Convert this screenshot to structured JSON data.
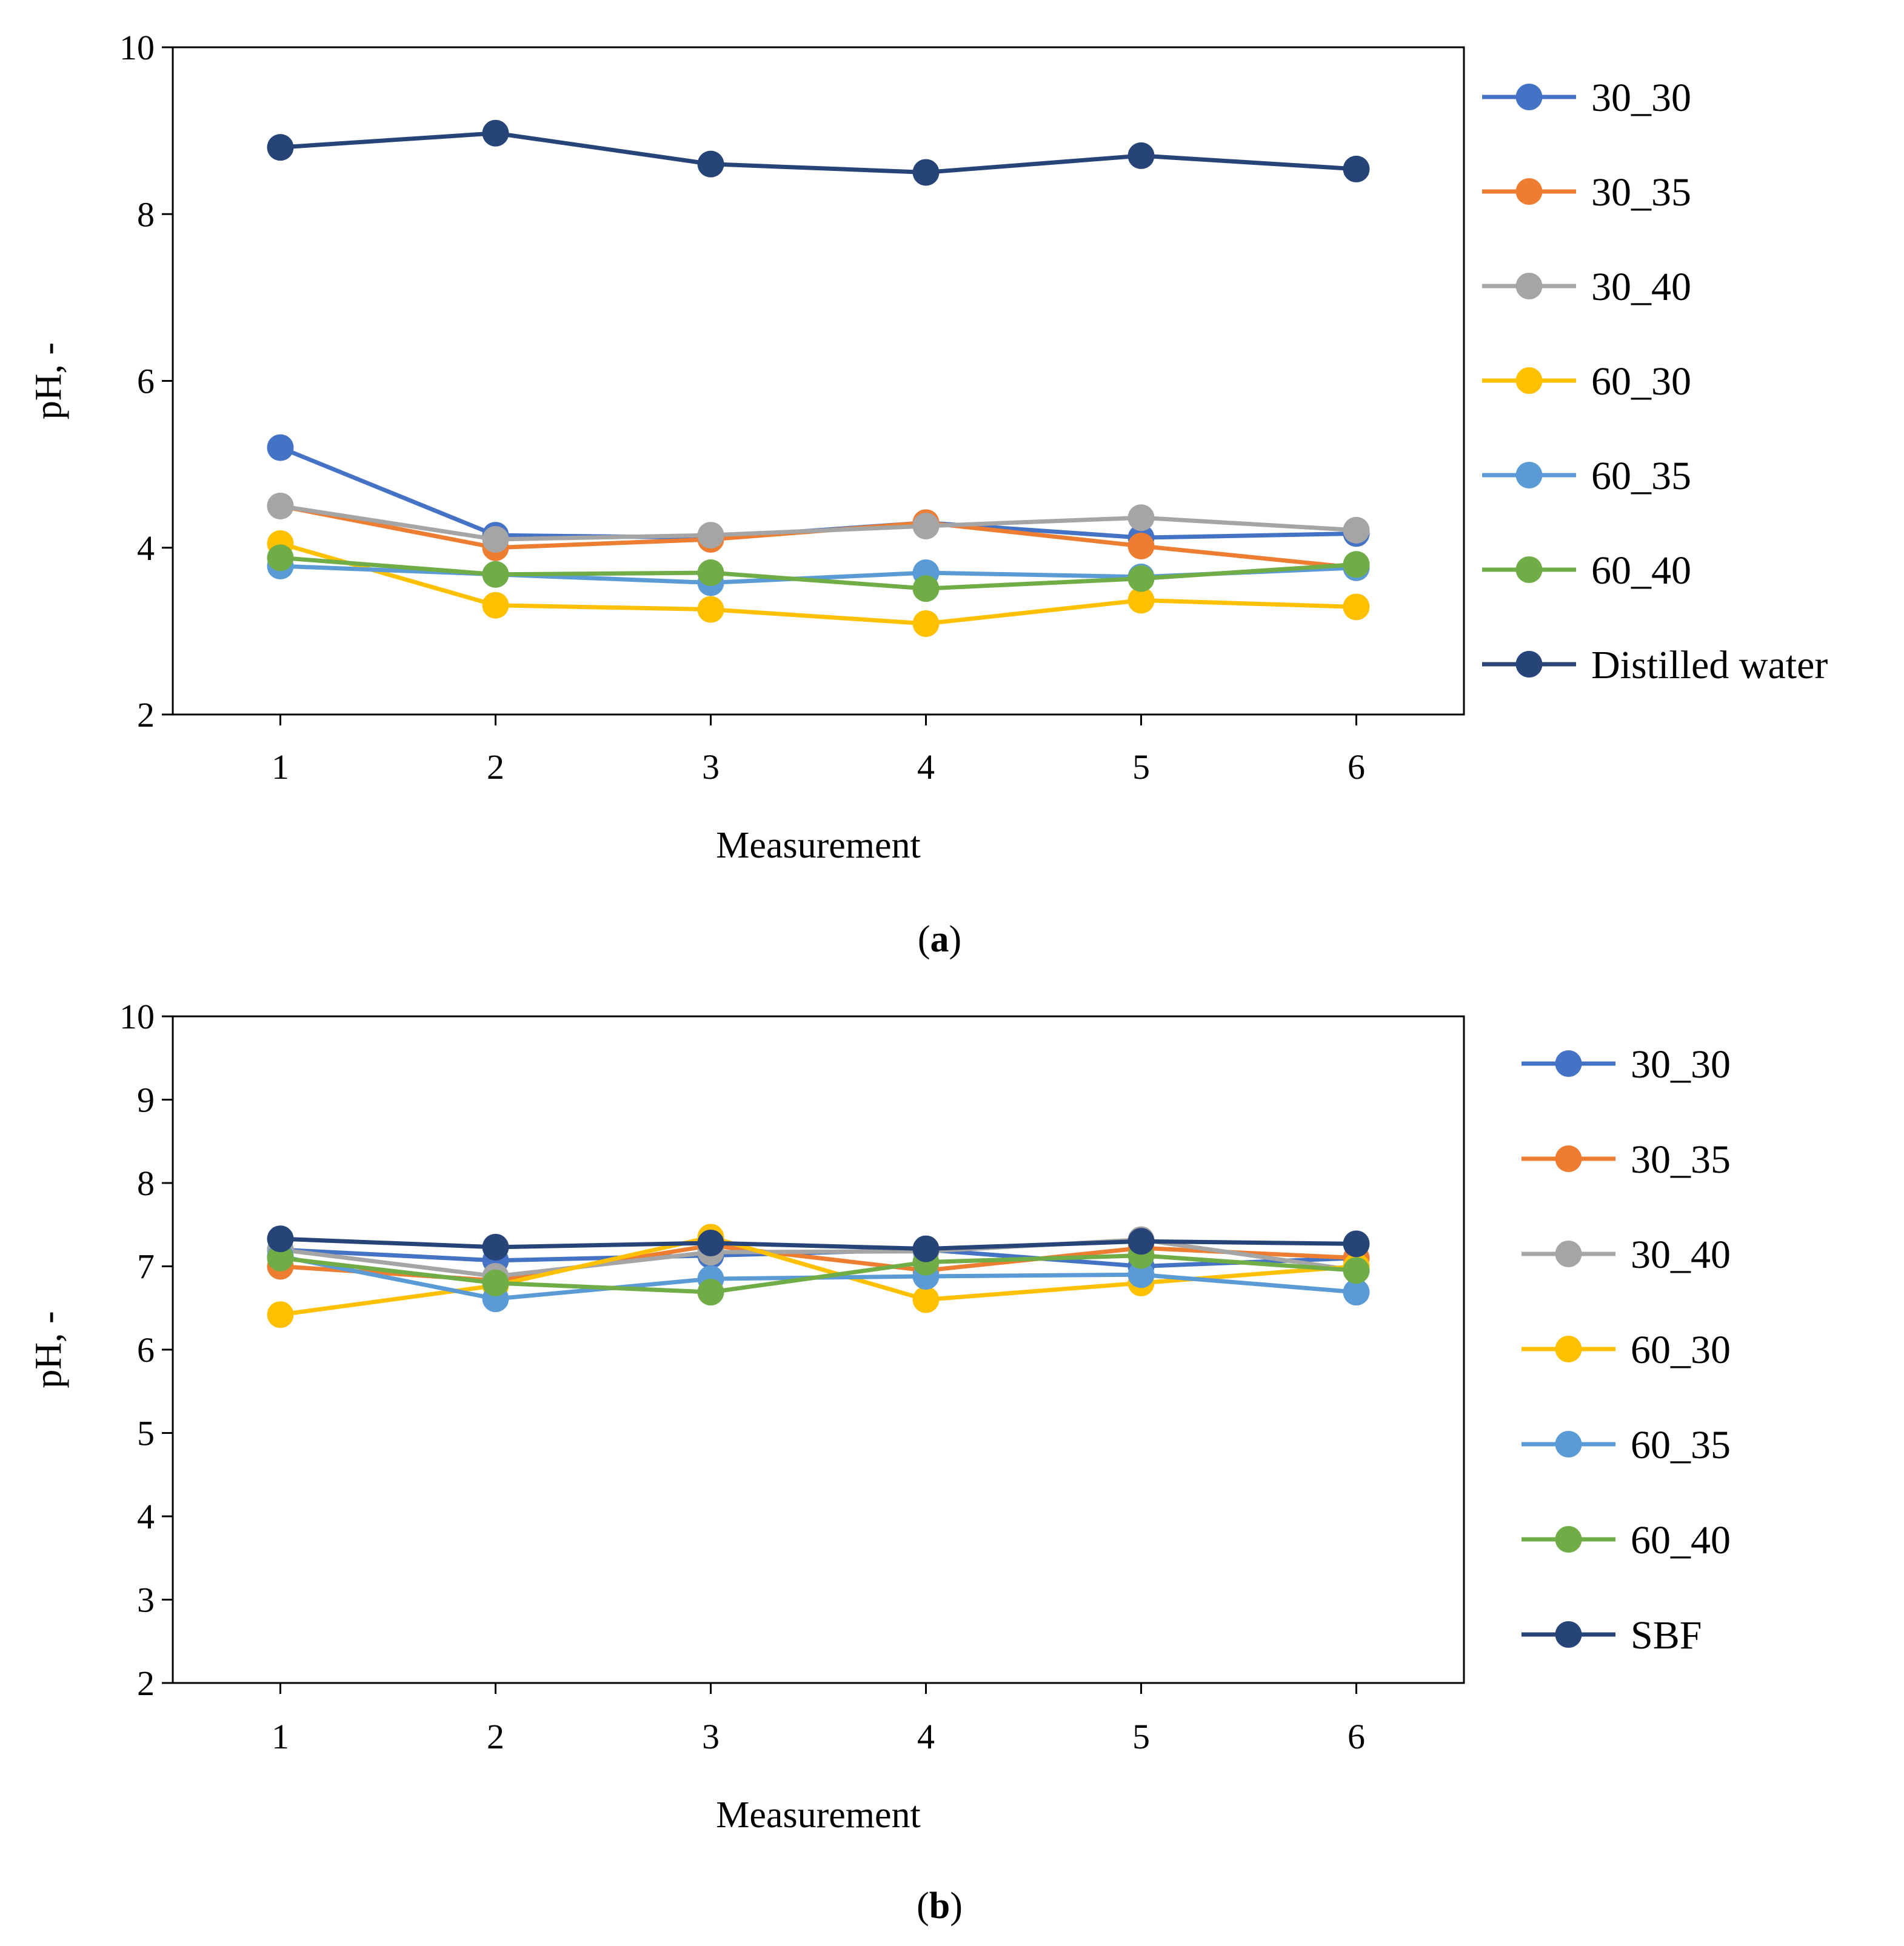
{
  "chart_data": [
    {
      "type": "line",
      "panel_label": "a",
      "caption_open": "(",
      "caption_close": ")",
      "categories": [
        "1",
        "2",
        "3",
        "4",
        "5",
        "6"
      ],
      "xlabel": "Measurement",
      "ylabel": "pH, -",
      "ylim": [
        2,
        10
      ],
      "yticks": [
        "2",
        "4",
        "6",
        "8",
        "10"
      ],
      "grid": false,
      "legend_position": "right",
      "series": [
        {
          "name": "30_30",
          "color": "#4472C4",
          "values": [
            5.2,
            4.15,
            4.12,
            4.3,
            4.12,
            4.17
          ]
        },
        {
          "name": "30_35",
          "color": "#ED7D31",
          "values": [
            4.5,
            4.0,
            4.1,
            4.3,
            4.02,
            3.76
          ]
        },
        {
          "name": "30_40",
          "color": "#A5A5A5",
          "values": [
            4.5,
            4.1,
            4.15,
            4.26,
            4.36,
            4.21
          ]
        },
        {
          "name": "60_30",
          "color": "#FFC000",
          "values": [
            4.05,
            3.31,
            3.26,
            3.09,
            3.37,
            3.29
          ]
        },
        {
          "name": "60_35",
          "color": "#5B9BD5",
          "values": [
            3.78,
            3.68,
            3.58,
            3.7,
            3.65,
            3.76
          ]
        },
        {
          "name": "60_40",
          "color": "#70AD47",
          "values": [
            3.88,
            3.68,
            3.7,
            3.51,
            3.63,
            3.8
          ]
        },
        {
          "name": "Distilled water",
          "color": "#264478",
          "values": [
            8.8,
            8.97,
            8.6,
            8.5,
            8.7,
            8.54
          ]
        }
      ]
    },
    {
      "type": "line",
      "panel_label": "b",
      "caption_open": "(",
      "caption_close": ")",
      "categories": [
        "1",
        "2",
        "3",
        "4",
        "5",
        "6"
      ],
      "xlabel": "Measurement",
      "ylabel": "pH, -",
      "ylim": [
        2,
        10
      ],
      "yticks": [
        "2",
        "3",
        "4",
        "5",
        "6",
        "7",
        "8",
        "9",
        "10"
      ],
      "grid": false,
      "legend_position": "right",
      "series": [
        {
          "name": "30_30",
          "color": "#4472C4",
          "values": [
            7.2,
            7.07,
            7.13,
            7.2,
            7.0,
            7.1
          ]
        },
        {
          "name": "30_35",
          "color": "#ED7D31",
          "values": [
            7.0,
            6.83,
            7.25,
            6.95,
            7.22,
            7.1
          ]
        },
        {
          "name": "30_40",
          "color": "#A5A5A5",
          "values": [
            7.2,
            6.88,
            7.17,
            7.18,
            7.32,
            6.95
          ]
        },
        {
          "name": "60_30",
          "color": "#FFC000",
          "values": [
            6.42,
            6.77,
            7.35,
            6.6,
            6.8,
            7.0
          ]
        },
        {
          "name": "60_35",
          "color": "#5B9BD5",
          "values": [
            7.12,
            6.61,
            6.85,
            6.88,
            6.9,
            6.69
          ]
        },
        {
          "name": "60_40",
          "color": "#70AD47",
          "values": [
            7.1,
            6.8,
            6.69,
            7.05,
            7.13,
            6.95
          ]
        },
        {
          "name": "SBF",
          "color": "#264478",
          "values": [
            7.33,
            7.23,
            7.28,
            7.21,
            7.3,
            7.27
          ]
        }
      ]
    }
  ]
}
